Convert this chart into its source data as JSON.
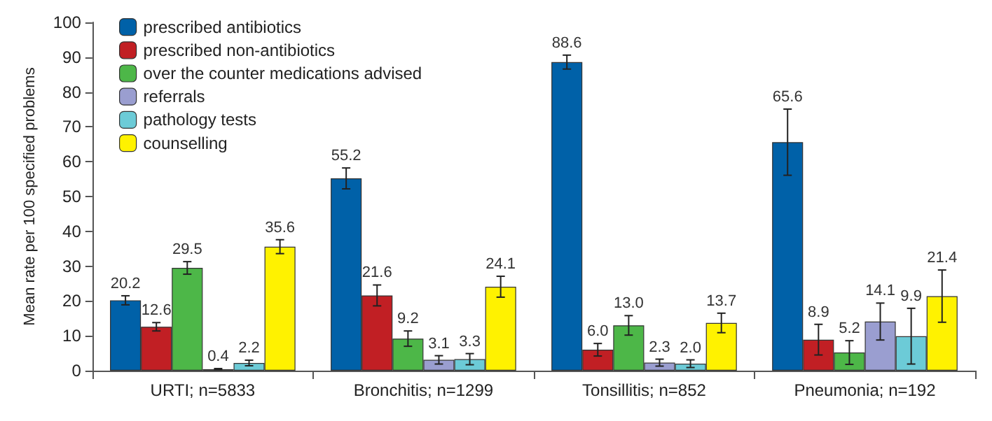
{
  "chart_data": {
    "type": "bar",
    "ylabel": "Mean rate per 100 specified problems",
    "categories": [
      "URTI; n=5833",
      "Bronchitis; n=1299",
      "Tonsillitis; n=852",
      "Pneumonia; n=192"
    ],
    "series": [
      {
        "name": "prescribed antibiotics",
        "color": "#0061a8",
        "values": [
          20.2,
          55.2,
          88.6,
          65.6
        ],
        "errors": [
          1.3,
          3,
          2,
          9.5
        ]
      },
      {
        "name": "prescribed non-antibiotics",
        "color": "#c11f24",
        "values": [
          12.6,
          21.6,
          6.0,
          8.9
        ],
        "errors": [
          1.2,
          3,
          1.8,
          4.4
        ],
        "value_labels": [
          "12.6",
          "21.6",
          "6.0",
          "8.9"
        ]
      },
      {
        "name": "over the counter medications advised",
        "color": "#4db748",
        "values": [
          29.5,
          9.2,
          13.0,
          5.2
        ],
        "errors": [
          1.8,
          2.2,
          2.8,
          3.4
        ],
        "value_labels": [
          "29.5",
          "9.2",
          "13.0",
          "5.2"
        ]
      },
      {
        "name": "referrals",
        "color": "#9a9ed0",
        "values": [
          0.4,
          3.1,
          2.3,
          14.1
        ],
        "errors": [
          0.2,
          1.2,
          1,
          5.3
        ]
      },
      {
        "name": "pathology tests",
        "color": "#6ccbd7",
        "values": [
          2.2,
          3.3,
          2.0,
          9.9
        ],
        "errors": [
          0.8,
          1.6,
          1.1,
          8
        ],
        "value_labels": [
          "2.2",
          "3.3",
          "2.0",
          "9.9"
        ]
      },
      {
        "name": "counselling",
        "color": "#fff200",
        "values": [
          35.6,
          24.1,
          13.7,
          21.4
        ],
        "errors": [
          2,
          3,
          2.8,
          7.5
        ]
      }
    ],
    "ylim": [
      0,
      100
    ],
    "yticks": [
      0,
      10,
      20,
      30,
      40,
      50,
      60,
      70,
      80,
      90,
      100
    ],
    "data_labels": true,
    "grid": false,
    "legend": "top left"
  }
}
